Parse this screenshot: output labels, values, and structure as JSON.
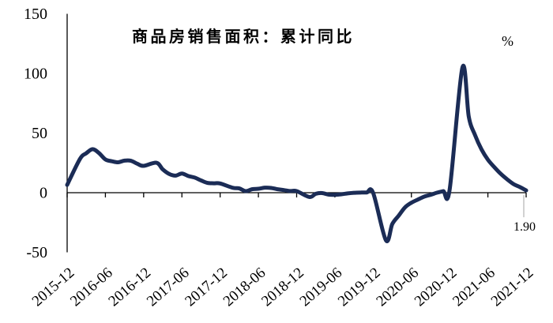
{
  "chart": {
    "title": "商品房销售面积：累计同比",
    "unit_label": "%",
    "end_value_label": "1.90"
  },
  "chart_data": {
    "type": "line",
    "title": "商品房销售面积：累计同比",
    "ylabel": "%",
    "ylim": [
      -50,
      150
    ],
    "yticks": [
      150,
      100,
      50,
      0,
      -50
    ],
    "xtick_labels": [
      "2015-12",
      "2016-06",
      "2016-12",
      "2017-06",
      "2017-12",
      "2018-06",
      "2018-12",
      "2019-06",
      "2019-12",
      "2020-06",
      "2020-12",
      "2021-06",
      "2021-12"
    ],
    "grid": false,
    "legend_position": "none",
    "line_color": "#1b2c56",
    "axis_color": "#000000",
    "series": [
      {
        "name": "商品房销售面积：累计同比",
        "dates": [
          "2015-12",
          "2016-02",
          "2016-03",
          "2016-04",
          "2016-05",
          "2016-06",
          "2016-07",
          "2016-08",
          "2016-09",
          "2016-10",
          "2016-11",
          "2016-12",
          "2017-02",
          "2017-03",
          "2017-04",
          "2017-05",
          "2017-06",
          "2017-07",
          "2017-08",
          "2017-09",
          "2017-10",
          "2017-11",
          "2017-12",
          "2018-02",
          "2018-03",
          "2018-04",
          "2018-05",
          "2018-06",
          "2018-07",
          "2018-08",
          "2018-09",
          "2018-10",
          "2018-11",
          "2018-12",
          "2019-02",
          "2019-03",
          "2019-04",
          "2019-05",
          "2019-06",
          "2019-07",
          "2019-08",
          "2019-09",
          "2019-10",
          "2019-11",
          "2019-12",
          "2020-02",
          "2020-03",
          "2020-04",
          "2020-05",
          "2020-06",
          "2020-07",
          "2020-08",
          "2020-09",
          "2020-10",
          "2020-11",
          "2020-12",
          "2021-02",
          "2021-03",
          "2021-04",
          "2021-05",
          "2021-06",
          "2021-07",
          "2021-08",
          "2021-09",
          "2021-10",
          "2021-11",
          "2021-12"
        ],
        "values": [
          6.5,
          28.2,
          33.1,
          36.5,
          33.2,
          27.9,
          26.4,
          25.5,
          26.9,
          26.8,
          24.3,
          22.5,
          25.1,
          19.5,
          15.7,
          14.3,
          16.1,
          14.0,
          12.7,
          10.3,
          8.2,
          7.9,
          7.7,
          4.1,
          3.6,
          1.3,
          2.9,
          3.3,
          4.2,
          4.0,
          2.9,
          2.2,
          1.4,
          1.3,
          -3.6,
          -0.9,
          -0.3,
          -1.6,
          -1.8,
          -1.3,
          -0.6,
          -0.1,
          0.1,
          0.2,
          -0.1,
          -39.9,
          -26.3,
          -19.3,
          -12.3,
          -8.4,
          -5.8,
          -3.3,
          -1.8,
          0.0,
          1.3,
          2.6,
          104.9,
          63.8,
          48.1,
          36.3,
          27.7,
          21.5,
          15.9,
          11.3,
          7.3,
          4.8,
          1.9
        ]
      }
    ],
    "annotation": {
      "text": "1.90",
      "date": "2021-12",
      "value": 1.9,
      "leader_color": "#a6a6a6"
    }
  }
}
